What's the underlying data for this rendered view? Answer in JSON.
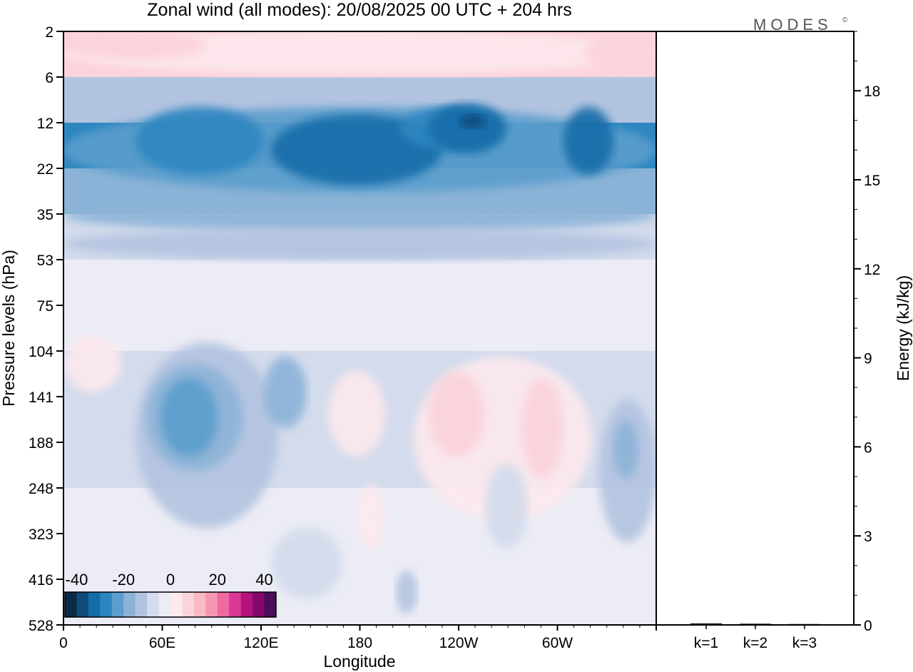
{
  "logo": "MODES",
  "logo_mark": "©",
  "chart_data": [
    {
      "type": "heatmap",
      "title": "Zonal wind (all modes):  20/08/2025  00 UTC  + 204 hrs",
      "xlabel": "Longitude",
      "ylabel": "Pressure levels (hPa)",
      "x_ticks": [
        "0",
        "60E",
        "120E",
        "180",
        "120W",
        "60W"
      ],
      "x_tick_degrees": [
        0,
        60,
        120,
        180,
        240,
        300
      ],
      "xlim_degrees": [
        0,
        360
      ],
      "y_ticks": [
        "2",
        "6",
        "12",
        "22",
        "35",
        "53",
        "75",
        "104",
        "141",
        "188",
        "248",
        "323",
        "416",
        "528"
      ],
      "colorbar": {
        "ticks": [
          "-40",
          "-20",
          "0",
          "20",
          "40"
        ],
        "range": [
          -45,
          45
        ],
        "step": 5,
        "colors": [
          "#0b2a48",
          "#0f4a79",
          "#146da9",
          "#2e86c0",
          "#5b9ecd",
          "#8bb3d7",
          "#b2c3e0",
          "#d3dbec",
          "#ebecf5",
          "#fde9ee",
          "#fbd3da",
          "#f9b9c5",
          "#f597b3",
          "#ee6aa3",
          "#d93994",
          "#b3137f",
          "#85086e",
          "#4a0e5a"
        ]
      },
      "bands": [
        {
          "levels": [
            "2",
            "6"
          ],
          "description_value": 7
        },
        {
          "levels": [
            "6",
            "12"
          ],
          "description_value": -12
        },
        {
          "levels": [
            "12",
            "22"
          ],
          "description_value": -28
        },
        {
          "levels": [
            "22",
            "35"
          ],
          "description_value": -20
        },
        {
          "levels": [
            "35",
            "53"
          ],
          "description_value": -8
        },
        {
          "levels": [
            "53",
            "104"
          ],
          "description_value": -2
        },
        {
          "levels": [
            "104",
            "248"
          ],
          "description_value": -6
        },
        {
          "levels": [
            "248",
            "528"
          ],
          "description_value": -3
        }
      ]
    },
    {
      "type": "bar",
      "categories": [
        "k=1",
        "k=2",
        "k=3"
      ],
      "values": [
        0.05,
        0.04,
        0.03
      ],
      "ylabel": "Energy (kJ/kg)",
      "ylim": [
        0,
        20
      ],
      "y_ticks": [
        "0",
        "3",
        "6",
        "9",
        "12",
        "15",
        "18"
      ],
      "y_tick_values": [
        0,
        3,
        6,
        9,
        12,
        15,
        18
      ]
    }
  ]
}
